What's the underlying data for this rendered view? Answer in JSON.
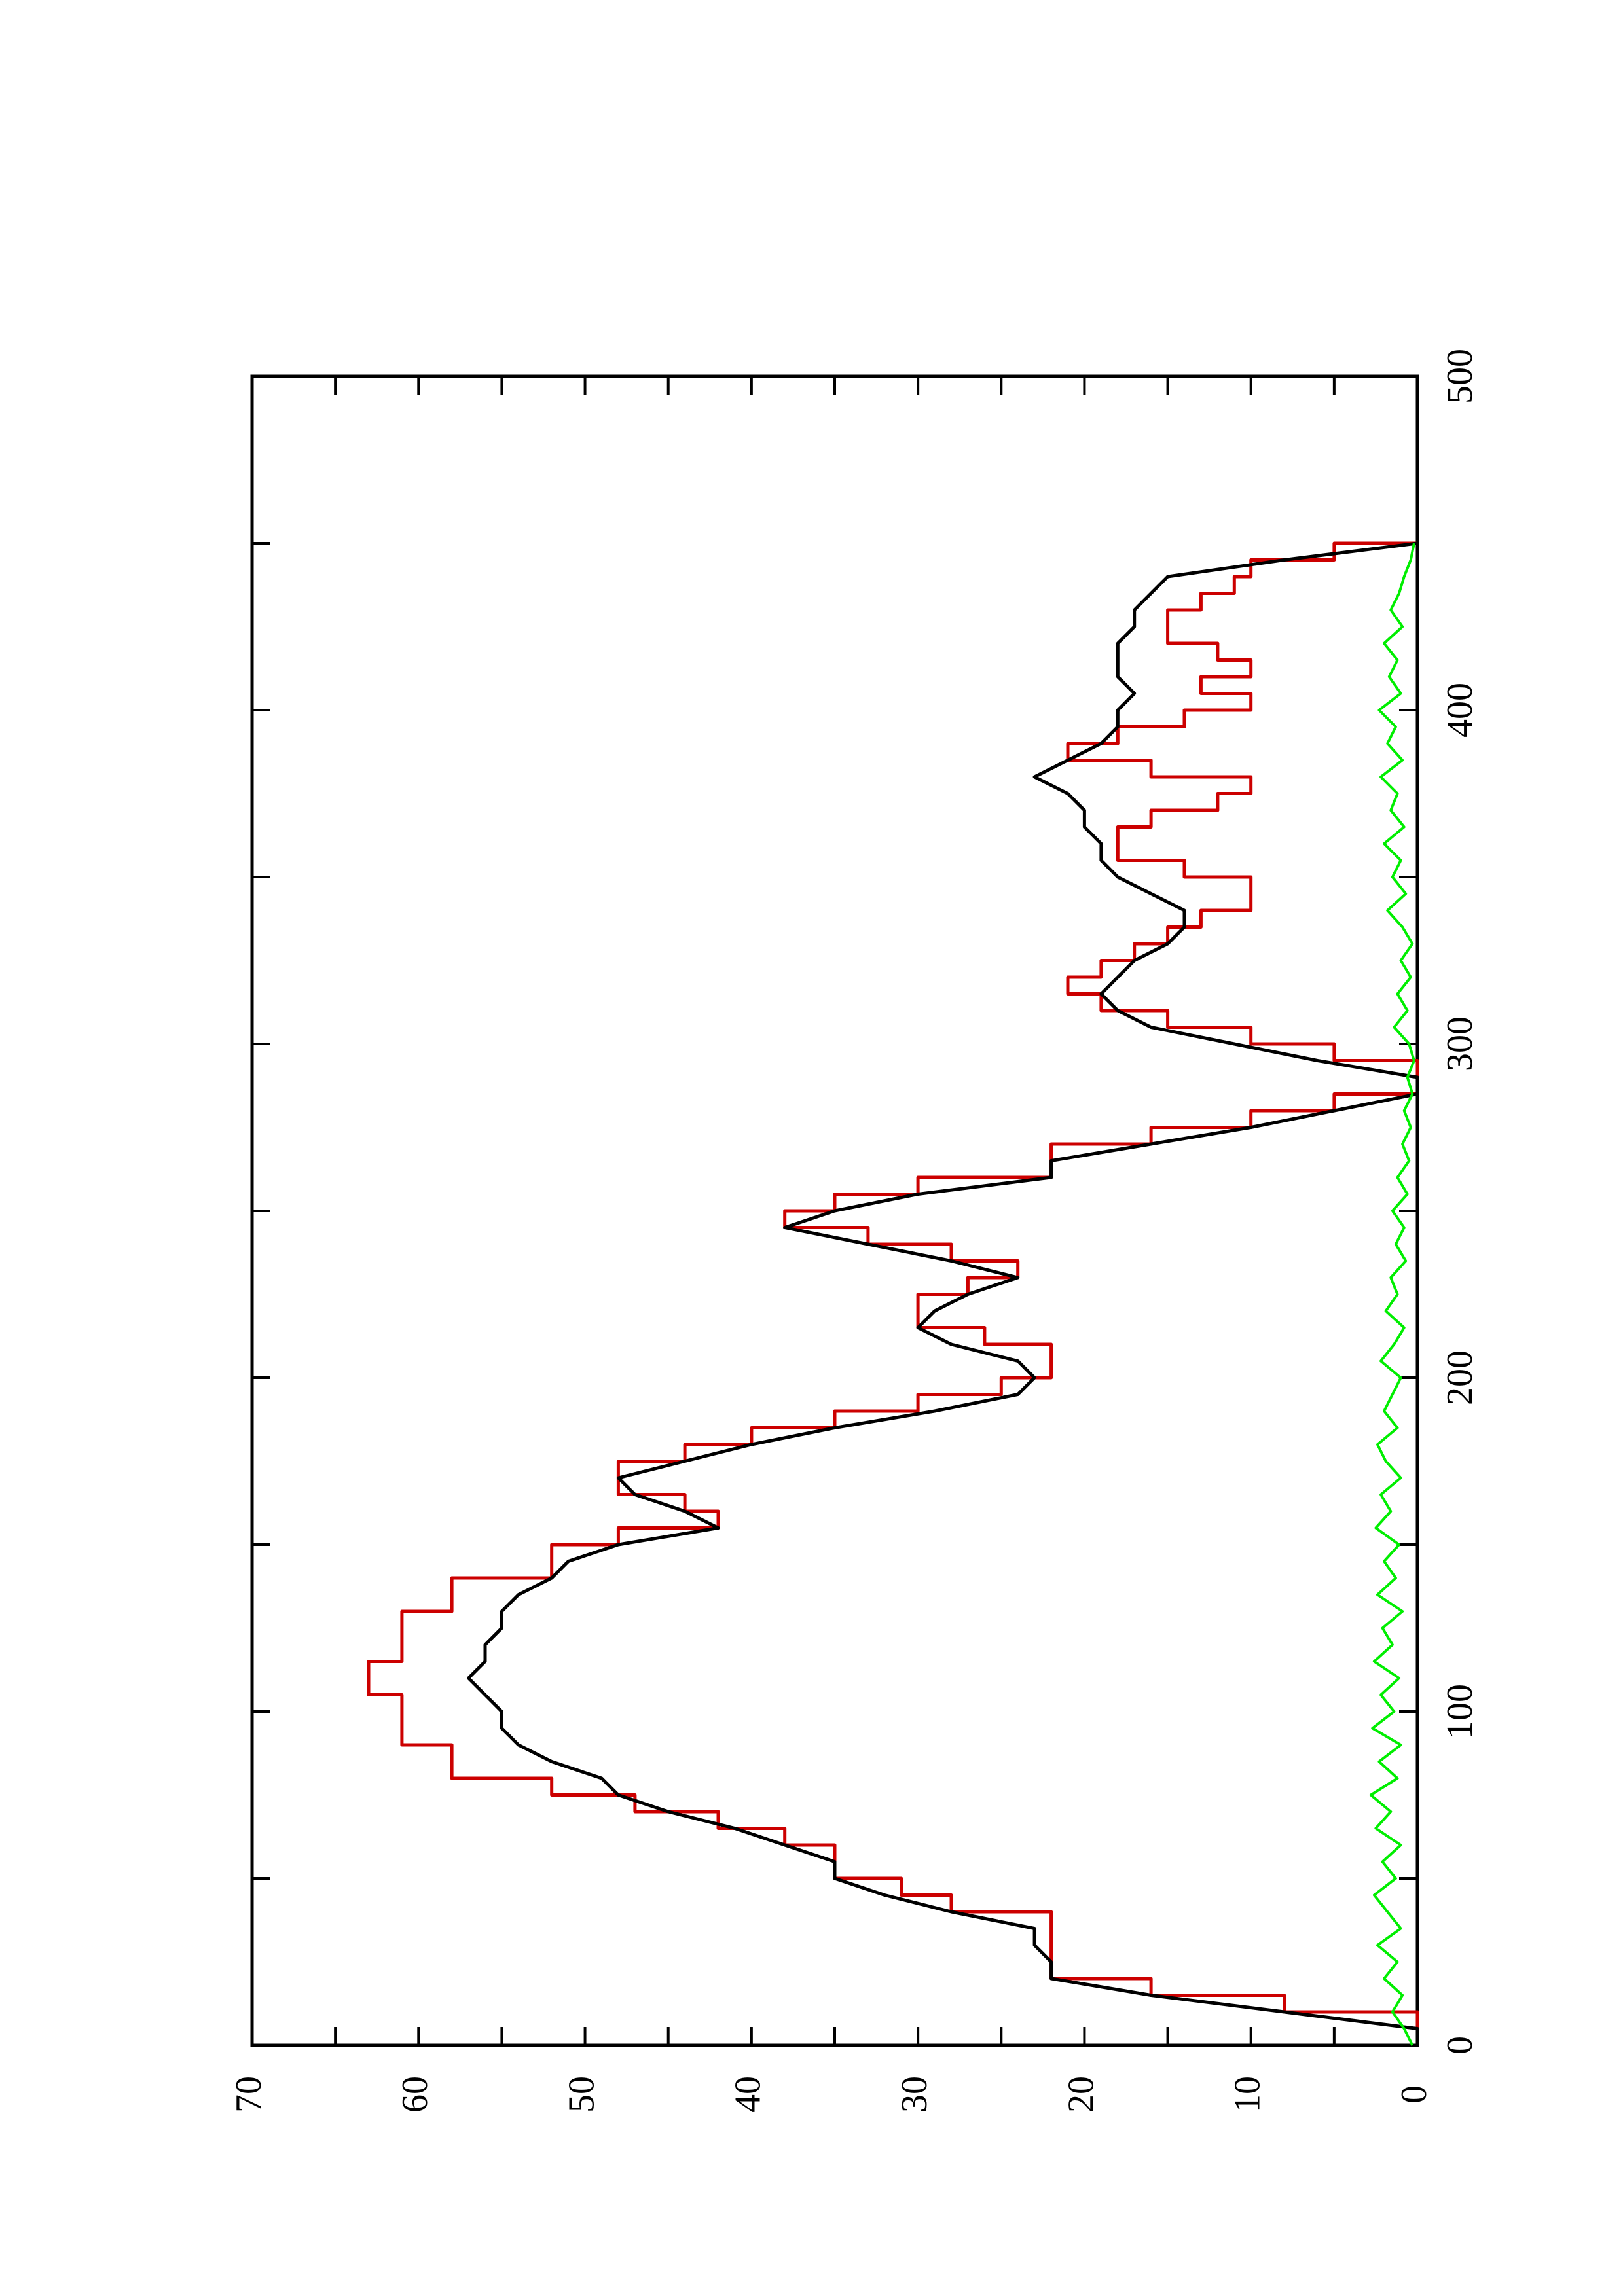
{
  "chart_data": {
    "type": "line",
    "orientation": "rotated-90-ccw",
    "xlabel": "",
    "ylabel": "",
    "xlim": [
      0,
      500
    ],
    "ylim": [
      0,
      70
    ],
    "x_ticks": [
      0,
      100,
      200,
      300,
      400,
      500
    ],
    "y_ticks": [
      0,
      10,
      20,
      30,
      40,
      50,
      60,
      70
    ],
    "grid": false,
    "legend": "none",
    "series": [
      {
        "color": "#cc0000",
        "style": "step",
        "x": [
          0,
          5,
          10,
          15,
          20,
          25,
          30,
          35,
          40,
          45,
          50,
          55,
          60,
          65,
          70,
          75,
          80,
          85,
          90,
          95,
          100,
          105,
          110,
          115,
          120,
          125,
          130,
          135,
          140,
          145,
          150,
          155,
          160,
          165,
          170,
          175,
          180,
          185,
          190,
          195,
          200,
          205,
          210,
          215,
          220,
          225,
          230,
          235,
          240,
          245,
          250,
          255,
          260,
          265,
          270,
          275,
          280,
          285,
          290,
          295,
          300,
          305,
          310,
          315,
          320,
          325,
          330,
          335,
          340,
          345,
          350,
          355,
          360,
          365,
          370,
          375,
          380,
          385,
          390,
          395,
          400,
          405,
          410,
          415,
          420,
          425,
          430,
          435,
          440,
          445,
          450
        ],
        "values": [
          0,
          0,
          8,
          16,
          22,
          22,
          22,
          22,
          28,
          31,
          35,
          35,
          38,
          42,
          47,
          52,
          58,
          58,
          61,
          61,
          61,
          63,
          63,
          61,
          61,
          61,
          58,
          58,
          52,
          52,
          48,
          42,
          44,
          48,
          48,
          44,
          40,
          35,
          30,
          25,
          22,
          22,
          26,
          30,
          30,
          27,
          24,
          28,
          33,
          38,
          35,
          30,
          22,
          22,
          16,
          10,
          5,
          0,
          0,
          5,
          10,
          15,
          19,
          21,
          19,
          17,
          15,
          13,
          10,
          10,
          14,
          18,
          18,
          16,
          12,
          10,
          16,
          21,
          18,
          14,
          10,
          13,
          10,
          12,
          15,
          15,
          13,
          11,
          10,
          5,
          0
        ]
      },
      {
        "color": "#000000",
        "style": "line",
        "x": [
          0,
          5,
          10,
          15,
          20,
          25,
          30,
          35,
          40,
          45,
          50,
          55,
          60,
          65,
          70,
          75,
          80,
          85,
          90,
          95,
          100,
          105,
          110,
          115,
          120,
          125,
          130,
          135,
          140,
          145,
          150,
          155,
          160,
          165,
          170,
          175,
          180,
          185,
          190,
          195,
          200,
          205,
          210,
          215,
          220,
          225,
          230,
          235,
          240,
          245,
          250,
          255,
          260,
          265,
          270,
          275,
          280,
          285,
          290,
          295,
          300,
          305,
          310,
          315,
          320,
          325,
          330,
          335,
          340,
          345,
          350,
          355,
          360,
          365,
          370,
          375,
          380,
          385,
          390,
          395,
          400,
          405,
          410,
          415,
          420,
          425,
          430,
          435,
          440,
          445,
          450
        ],
        "values": [
          0,
          0,
          8,
          16,
          22,
          22,
          23,
          23,
          28,
          32,
          35,
          35,
          38,
          41,
          45,
          48,
          49,
          52,
          54,
          55,
          55,
          56,
          57,
          56,
          56,
          55,
          55,
          54,
          52,
          51,
          48,
          42,
          44,
          47,
          48,
          44,
          40,
          35,
          29,
          24,
          23,
          24,
          28,
          30,
          29,
          27,
          24,
          28,
          33,
          38,
          35,
          30,
          22,
          22,
          16,
          10,
          5,
          0,
          0,
          6,
          11,
          16,
          18,
          19,
          18,
          17,
          15,
          14,
          14,
          16,
          18,
          19,
          19,
          20,
          20,
          21,
          23,
          21,
          19,
          18,
          18,
          17,
          18,
          18,
          18,
          17,
          17,
          16,
          15,
          8,
          0
        ]
      },
      {
        "color": "#00ee00",
        "style": "noise",
        "x": [
          0,
          5,
          10,
          15,
          20,
          25,
          30,
          35,
          40,
          45,
          50,
          55,
          60,
          65,
          70,
          75,
          80,
          85,
          90,
          95,
          100,
          105,
          110,
          115,
          120,
          125,
          130,
          135,
          140,
          145,
          150,
          155,
          160,
          165,
          170,
          175,
          180,
          185,
          190,
          195,
          200,
          205,
          210,
          215,
          220,
          225,
          230,
          235,
          240,
          245,
          250,
          255,
          260,
          265,
          270,
          275,
          280,
          285,
          290,
          295,
          300,
          305,
          310,
          315,
          320,
          325,
          330,
          335,
          340,
          345,
          350,
          355,
          360,
          365,
          370,
          375,
          380,
          385,
          390,
          395,
          400,
          405,
          410,
          415,
          420,
          425,
          430,
          435,
          440,
          445,
          450
        ],
        "values": [
          0.3,
          0.8,
          1.5,
          0.9,
          2.0,
          1.2,
          2.4,
          1.0,
          1.8,
          2.6,
          1.3,
          2.1,
          1.0,
          2.5,
          1.6,
          2.8,
          1.2,
          2.3,
          1.0,
          2.7,
          1.4,
          2.2,
          1.1,
          2.6,
          1.5,
          2.1,
          0.9,
          2.4,
          1.3,
          2.0,
          1.1,
          2.5,
          1.6,
          2.2,
          1.0,
          1.9,
          2.4,
          1.2,
          2.0,
          1.5,
          1.0,
          2.2,
          1.4,
          0.8,
          1.9,
          1.2,
          1.6,
          0.7,
          1.3,
          0.8,
          1.5,
          0.6,
          1.2,
          0.5,
          0.9,
          0.4,
          0.8,
          0.3,
          0.6,
          0.2,
          0.5,
          1.4,
          0.6,
          1.2,
          0.4,
          1.0,
          0.3,
          0.9,
          1.8,
          0.7,
          1.5,
          1.0,
          2.0,
          0.8,
          1.6,
          1.2,
          2.2,
          0.9,
          1.8,
          1.3,
          2.3,
          1.0,
          1.7,
          1.2,
          2.0,
          0.9,
          1.6,
          1.1,
          0.8,
          0.4,
          0.2
        ]
      }
    ]
  }
}
